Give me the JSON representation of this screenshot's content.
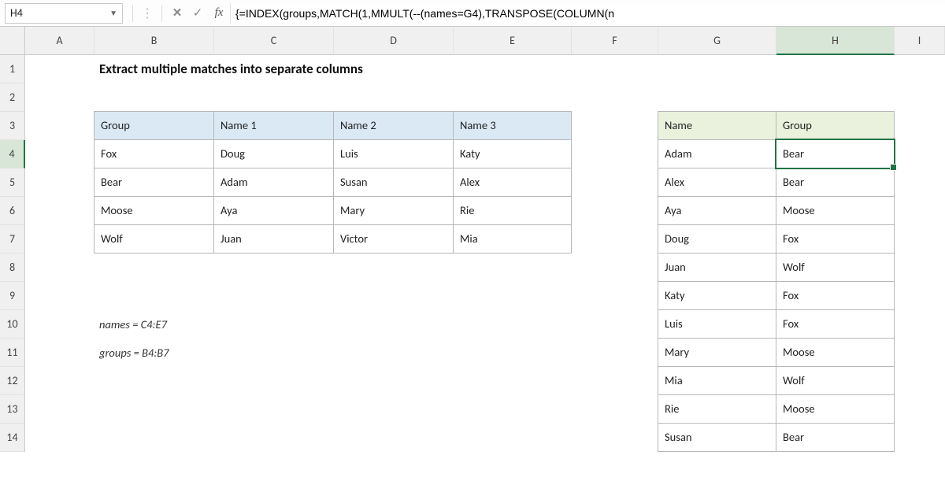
{
  "formula_bar": {
    "name_box": "H4",
    "fx_label": "fx",
    "formula": "{=INDEX(groups,MATCH(1,MMULT(--(names=G4),TRANSPOSE(COLUMN(n"
  },
  "columns": [
    "A",
    "B",
    "C",
    "D",
    "E",
    "F",
    "G",
    "H",
    "I"
  ],
  "rows": [
    "1",
    "2",
    "3",
    "4",
    "5",
    "6",
    "7",
    "8",
    "9",
    "10",
    "11",
    "12",
    "13",
    "14"
  ],
  "active_col_index": 7,
  "active_row_index": 3,
  "title": "Extract multiple matches into separate columns",
  "notes": {
    "names_def": "names = C4:E7",
    "groups_def": "groups = B4:B7"
  },
  "table1": {
    "headers": [
      "Group",
      "Name 1",
      "Name 2",
      "Name 3"
    ],
    "rows": [
      [
        "Fox",
        "Doug",
        "Luis",
        "Katy"
      ],
      [
        "Bear",
        "Adam",
        "Susan",
        "Alex"
      ],
      [
        "Moose",
        "Aya",
        "Mary",
        "Rie"
      ],
      [
        "Wolf",
        "Juan",
        "Victor",
        "Mia"
      ]
    ]
  },
  "table2": {
    "headers": [
      "Name",
      "Group"
    ],
    "rows": [
      [
        "Adam",
        "Bear"
      ],
      [
        "Alex",
        "Bear"
      ],
      [
        "Aya",
        "Moose"
      ],
      [
        "Doug",
        "Fox"
      ],
      [
        "Juan",
        "Wolf"
      ],
      [
        "Katy",
        "Fox"
      ],
      [
        "Luis",
        "Fox"
      ],
      [
        "Mary",
        "Moose"
      ],
      [
        "Mia",
        "Wolf"
      ],
      [
        "Rie",
        "Moose"
      ],
      [
        "Susan",
        "Bear"
      ]
    ]
  },
  "colors": {
    "header_blue": "#dbe9f5",
    "header_green": "#eaf1dd",
    "selection": "#217346",
    "grid_border": "#b7b7b7"
  }
}
